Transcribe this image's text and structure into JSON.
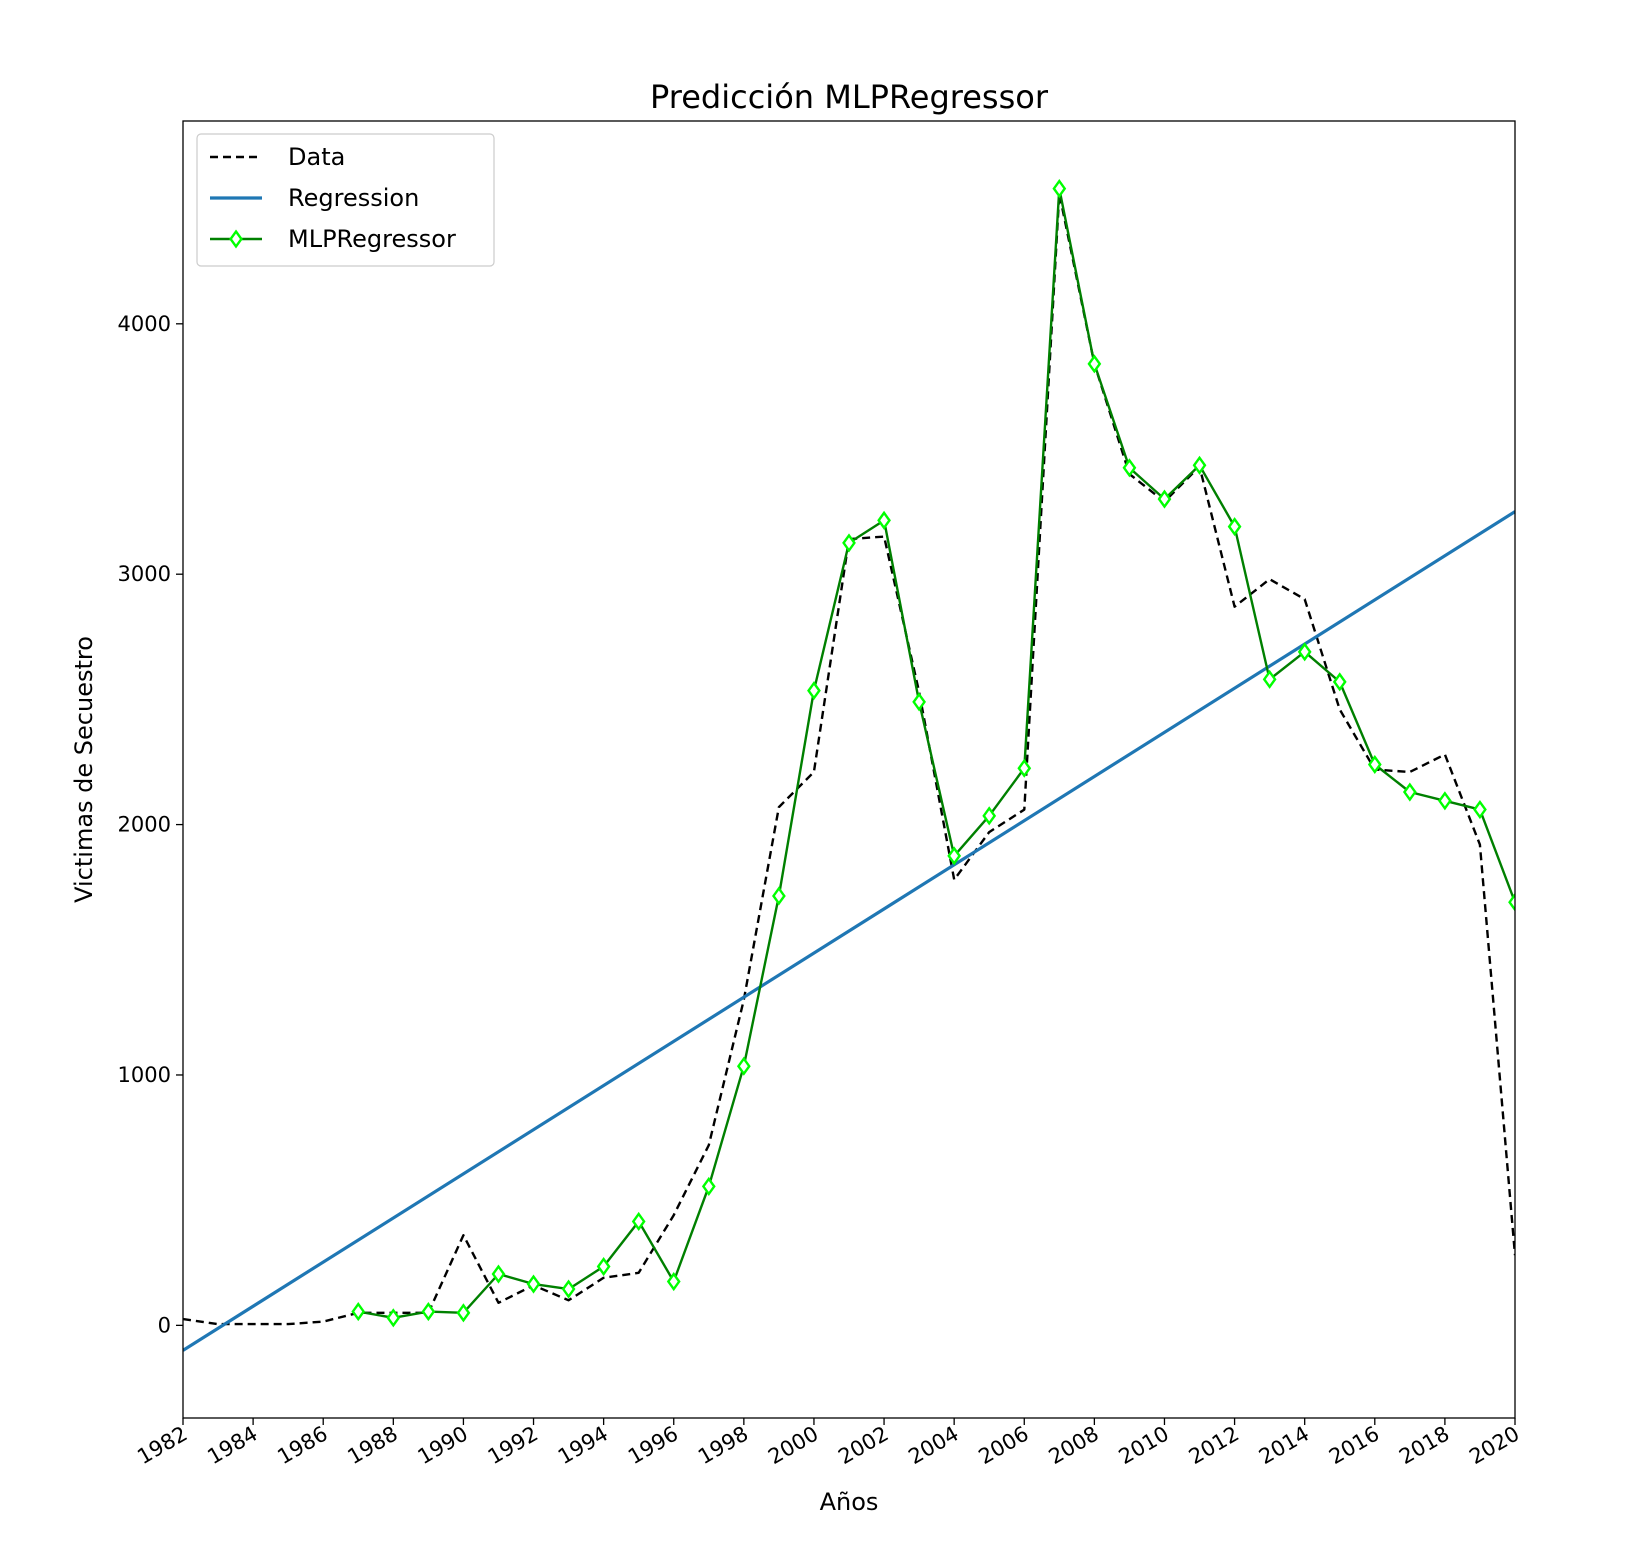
{
  "chart_data": {
    "type": "line",
    "title": "Predicción MLPRegressor",
    "xlabel": "Años",
    "ylabel": "Victimas de Secuestro",
    "xlim": [
      1982,
      2020
    ],
    "ylim": [
      -370,
      4810
    ],
    "x_ticks": [
      1982,
      1984,
      1986,
      1988,
      1990,
      1992,
      1994,
      1996,
      1998,
      2000,
      2002,
      2004,
      2006,
      2008,
      2010,
      2012,
      2014,
      2016,
      2018,
      2020
    ],
    "y_ticks": [
      0,
      1000,
      2000,
      3000,
      4000
    ],
    "grid": false,
    "legend_position": "top-left",
    "series": [
      {
        "name": "Data",
        "style": "dashed",
        "color": "#000000",
        "x": [
          1982,
          1983,
          1984,
          1985,
          1986,
          1987,
          1988,
          1989,
          1990,
          1991,
          1992,
          1993,
          1994,
          1995,
          1996,
          1997,
          1998,
          1999,
          2000,
          2001,
          2002,
          2003,
          2004,
          2005,
          2006,
          2007,
          2008,
          2009,
          2010,
          2011,
          2012,
          2013,
          2014,
          2015,
          2016,
          2017,
          2018,
          2019,
          2020
        ],
        "y": [
          25,
          5,
          5,
          5,
          15,
          50,
          50,
          50,
          360,
          90,
          160,
          100,
          190,
          210,
          440,
          720,
          1300,
          2070,
          2210,
          3140,
          3150,
          2530,
          1780,
          1970,
          2060,
          4520,
          3840,
          3400,
          3290,
          3430,
          2870,
          2980,
          2900,
          2460,
          2220,
          2210,
          2280,
          1920,
          280
        ]
      },
      {
        "name": "Regression",
        "style": "solid",
        "color": "#1f77b4",
        "x": [
          1982,
          2020
        ],
        "y": [
          -100,
          3250
        ]
      },
      {
        "name": "MLPRegressor",
        "style": "solid-markers",
        "color": "#008000",
        "marker_color": "#00ff00",
        "x": [
          1987,
          1988,
          1989,
          1990,
          1991,
          1992,
          1993,
          1994,
          1995,
          1996,
          1997,
          1998,
          1999,
          2000,
          2001,
          2002,
          2003,
          2004,
          2005,
          2006,
          2007,
          2008,
          2009,
          2010,
          2011,
          2012,
          2013,
          2014,
          2015,
          2016,
          2017,
          2018,
          2019,
          2020
        ],
        "y": [
          55,
          30,
          55,
          50,
          205,
          165,
          145,
          235,
          415,
          175,
          555,
          1035,
          1715,
          2535,
          3125,
          3215,
          2490,
          1875,
          2035,
          2225,
          4540,
          3840,
          3425,
          3300,
          3435,
          3190,
          2580,
          2690,
          2570,
          2240,
          2130,
          2095,
          2060,
          1690
        ]
      }
    ]
  }
}
